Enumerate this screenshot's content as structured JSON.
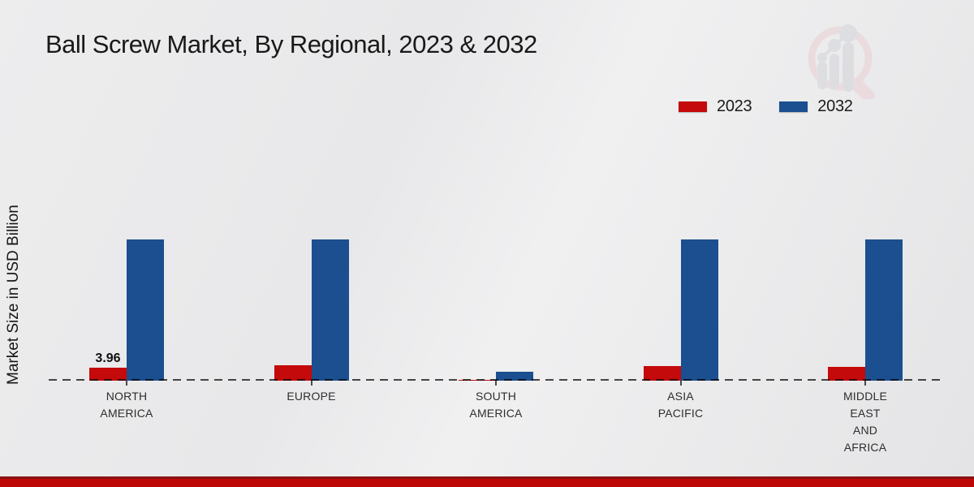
{
  "title": "Ball Screw Market, By Regional, 2023 & 2032",
  "y_axis_label": "Market Size in USD Billion",
  "legend": [
    {
      "label": "2023",
      "color": "#c40a0a"
    },
    {
      "label": "2032",
      "color": "#1b4f8f"
    }
  ],
  "colors": {
    "series_2023": "#c40a0a",
    "series_2032": "#1b4f8f",
    "baseline": "#4a4a4a",
    "footer": "#bd0707",
    "background": "#ebebed"
  },
  "chart_data": {
    "type": "bar",
    "title": "Ball Screw Market, By Regional, 2023 & 2032",
    "xlabel": "",
    "ylabel": "Market Size in USD Billion",
    "ylim": [
      0,
      45
    ],
    "grid": false,
    "legend_position": "top-right",
    "categories": [
      "NORTH AMERICA",
      "EUROPE",
      "SOUTH AMERICA",
      "ASIA PACIFIC",
      "MIDDLE EAST AND AFRICA"
    ],
    "category_lines": [
      [
        "NORTH",
        "AMERICA"
      ],
      [
        "EUROPE"
      ],
      [
        "SOUTH",
        "AMERICA"
      ],
      [
        "ASIA",
        "PACIFIC"
      ],
      [
        "MIDDLE",
        "EAST",
        "AND",
        "AFRICA"
      ]
    ],
    "series": [
      {
        "name": "2023",
        "color": "#c40a0a",
        "values": [
          3.96,
          4.5,
          0.35,
          4.3,
          4.0
        ]
      },
      {
        "name": "2032",
        "color": "#1b4f8f",
        "values": [
          42,
          42,
          2.6,
          42,
          42
        ]
      }
    ],
    "data_labels": [
      {
        "series": "2023",
        "category": "NORTH AMERICA",
        "text": "3.96"
      }
    ]
  }
}
